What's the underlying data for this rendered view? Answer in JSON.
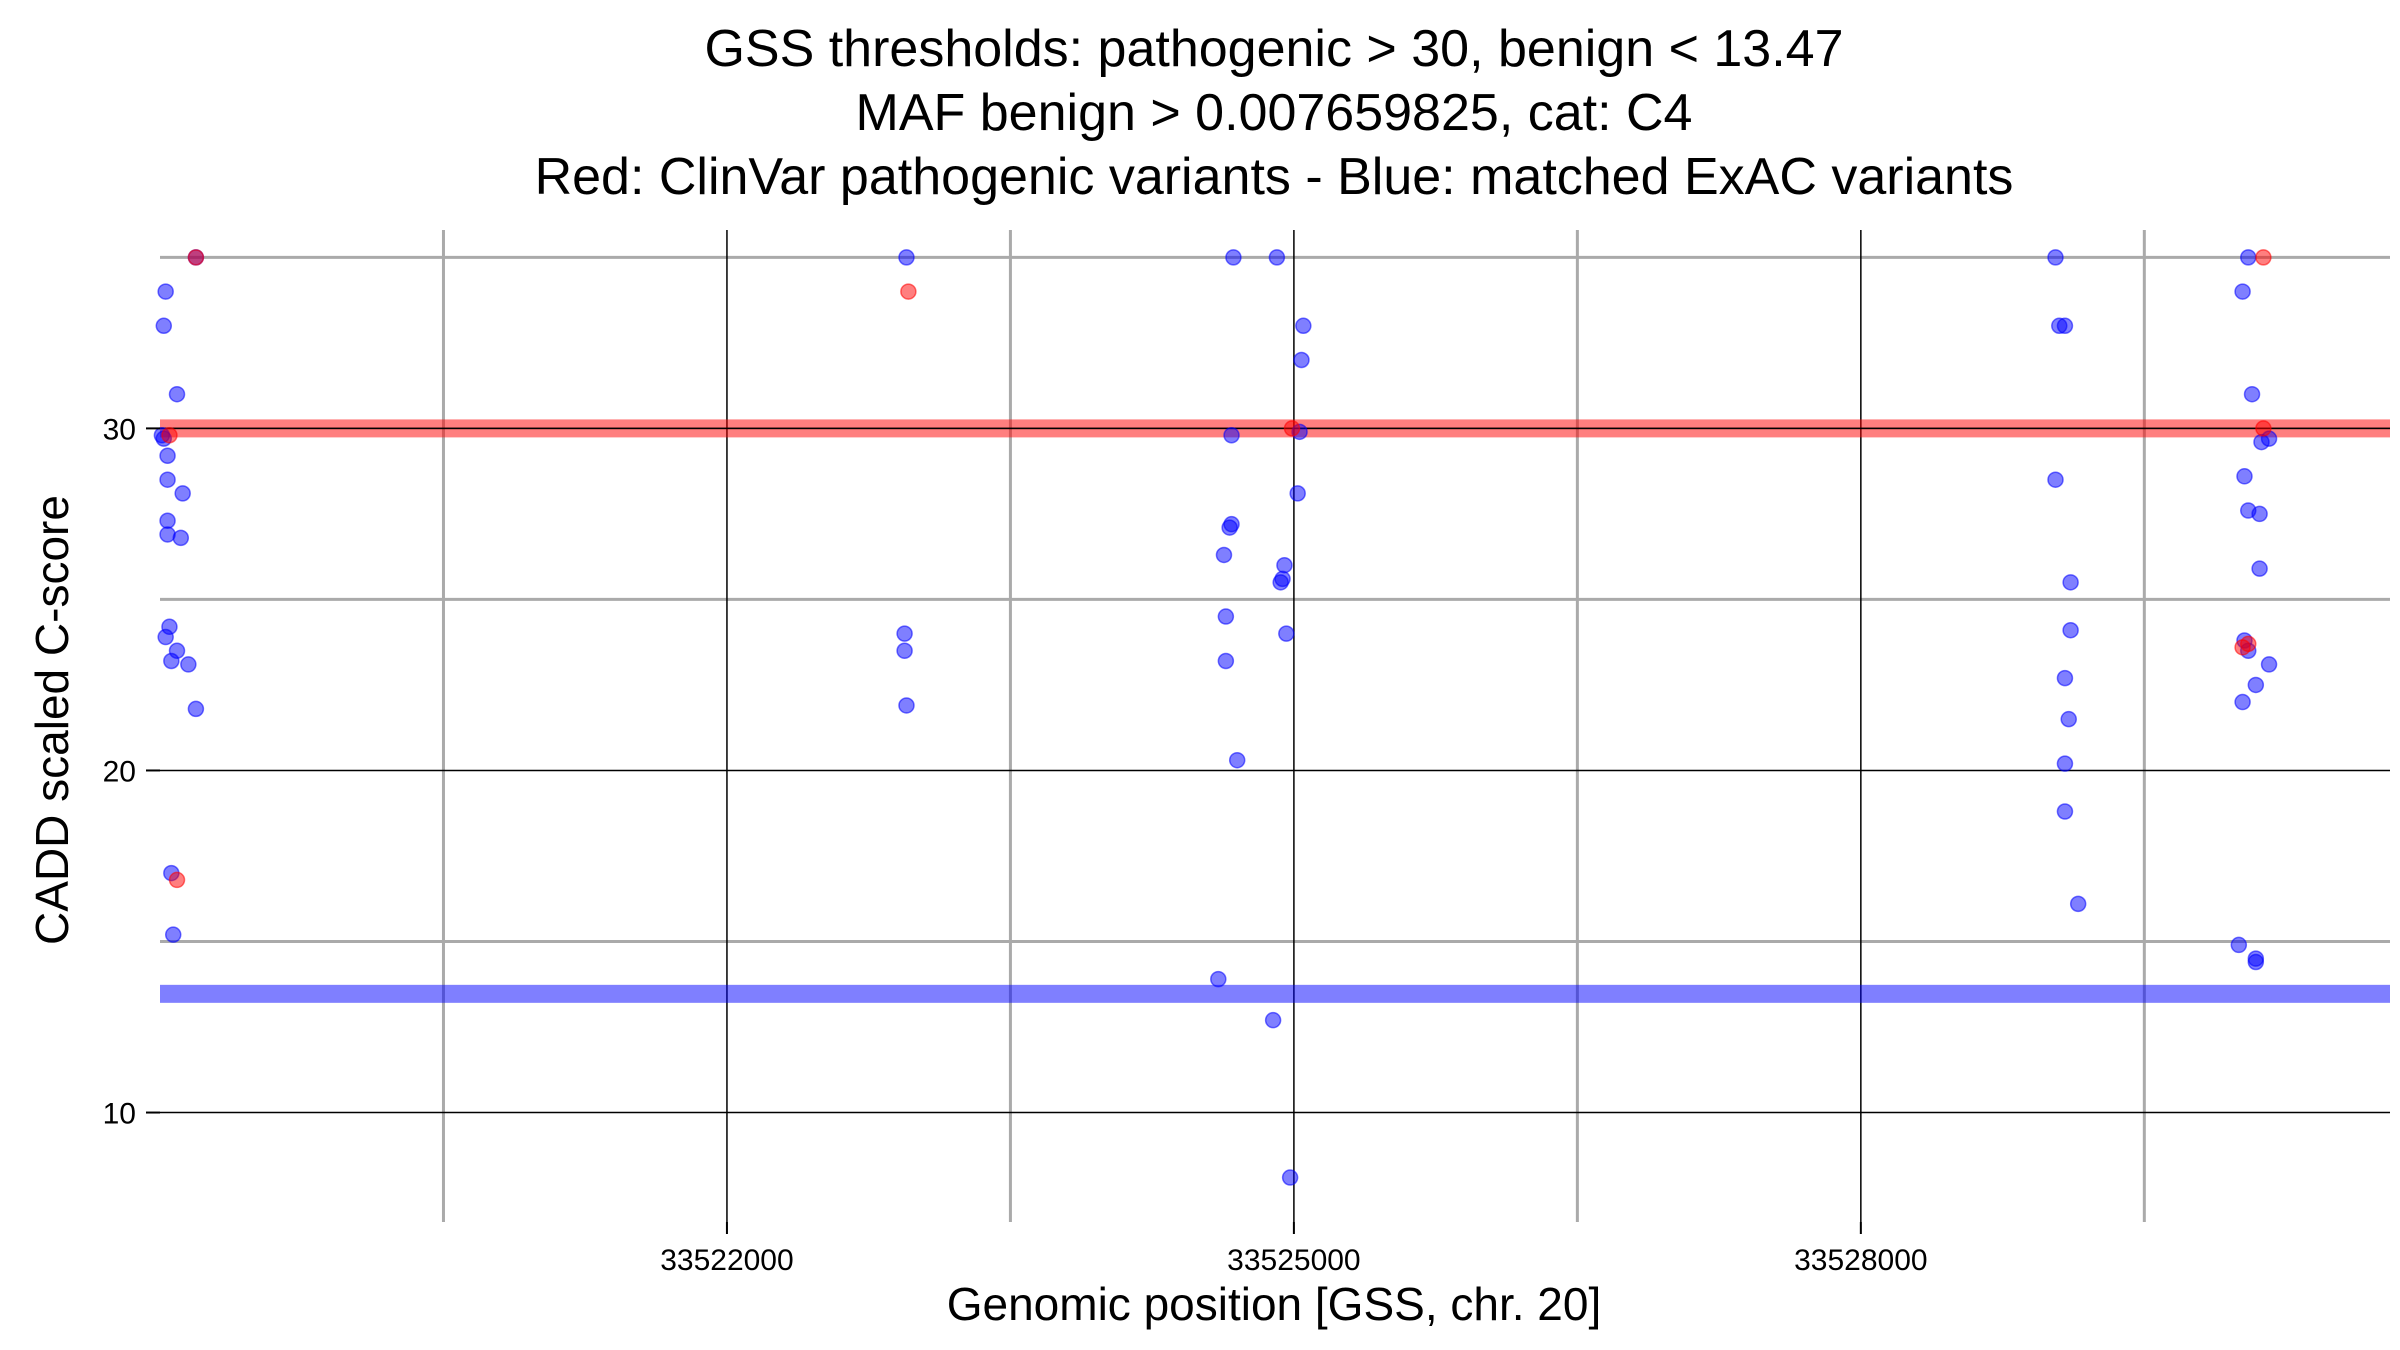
{
  "chart_data": {
    "type": "scatter",
    "title_lines": [
      "GSS thresholds: pathogenic > 30, benign < 13.47",
      "MAF benign > 0.007659825, cat: C4",
      "Red: ClinVar pathogenic variants - Blue: matched ExAC variants"
    ],
    "xlabel": "Genomic position [GSS, chr. 20]",
    "ylabel": "CADD scaled C-score",
    "xlim": [
      33519000,
      33530800
    ],
    "ylim": [
      6.8,
      35.8
    ],
    "x_ticks": [
      33522000,
      33525000,
      33528000
    ],
    "x_tick_labels": [
      "33522000",
      "33525000",
      "33528000"
    ],
    "x_minor_ticks": [
      33520500,
      33523500,
      33526500,
      33529500
    ],
    "y_ticks": [
      10,
      20,
      30
    ],
    "y_tick_labels": [
      "10",
      "20",
      "30"
    ],
    "y_minor_ticks": [
      15,
      25,
      35
    ],
    "grid": true,
    "thresholds": [
      {
        "value": 30,
        "color": "#ff0000"
      },
      {
        "value": 13.47,
        "color": "#0000ff"
      }
    ],
    "colors": {
      "pathogenic": "#ff0000",
      "matched": "#0000ff"
    },
    "series": [
      {
        "key": "pathogenic",
        "color": "#ff0000",
        "points": [
          [
            33519190,
            35.0
          ],
          [
            33519050,
            29.8
          ],
          [
            33519090,
            16.8
          ],
          [
            33522960,
            34.0
          ],
          [
            33524990,
            30.0
          ],
          [
            33530130,
            35.0
          ],
          [
            33530130,
            30.0
          ],
          [
            33530050,
            23.7
          ],
          [
            33530020,
            23.6
          ]
        ]
      },
      {
        "key": "matched",
        "color": "#0000ff",
        "points": [
          [
            33519190,
            35.0
          ],
          [
            33519030,
            34.0
          ],
          [
            33519020,
            33.0
          ],
          [
            33519090,
            31.0
          ],
          [
            33519010,
            29.8
          ],
          [
            33519020,
            29.7
          ],
          [
            33519040,
            29.2
          ],
          [
            33519040,
            28.5
          ],
          [
            33519120,
            28.1
          ],
          [
            33519040,
            27.3
          ],
          [
            33519040,
            26.9
          ],
          [
            33519110,
            26.8
          ],
          [
            33519050,
            24.2
          ],
          [
            33519030,
            23.9
          ],
          [
            33519090,
            23.5
          ],
          [
            33519060,
            23.2
          ],
          [
            33519150,
            23.1
          ],
          [
            33519190,
            21.8
          ],
          [
            33519060,
            17.0
          ],
          [
            33519070,
            15.2
          ],
          [
            33522950,
            35.0
          ],
          [
            33522940,
            24.0
          ],
          [
            33522940,
            23.5
          ],
          [
            33522950,
            21.9
          ],
          [
            33524680,
            35.0
          ],
          [
            33524910,
            35.0
          ],
          [
            33525050,
            33.0
          ],
          [
            33525040,
            32.0
          ],
          [
            33525030,
            29.9
          ],
          [
            33524670,
            29.8
          ],
          [
            33525020,
            28.1
          ],
          [
            33524670,
            27.2
          ],
          [
            33524660,
            27.1
          ],
          [
            33524630,
            26.3
          ],
          [
            33524950,
            26.0
          ],
          [
            33524940,
            25.6
          ],
          [
            33524930,
            25.5
          ],
          [
            33524640,
            24.5
          ],
          [
            33524960,
            24.0
          ],
          [
            33524640,
            23.2
          ],
          [
            33524700,
            20.3
          ],
          [
            33524600,
            13.9
          ],
          [
            33524890,
            12.7
          ],
          [
            33524980,
            8.1
          ],
          [
            33529030,
            35.0
          ],
          [
            33529050,
            33.0
          ],
          [
            33529080,
            33.0
          ],
          [
            33529030,
            28.5
          ],
          [
            33529110,
            25.5
          ],
          [
            33529110,
            24.1
          ],
          [
            33529080,
            22.7
          ],
          [
            33529100,
            21.5
          ],
          [
            33529080,
            20.2
          ],
          [
            33529080,
            18.8
          ],
          [
            33529150,
            16.1
          ],
          [
            33530050,
            35.0
          ],
          [
            33530020,
            34.0
          ],
          [
            33530070,
            31.0
          ],
          [
            33530160,
            29.7
          ],
          [
            33530120,
            29.6
          ],
          [
            33530030,
            28.6
          ],
          [
            33530050,
            27.6
          ],
          [
            33530110,
            27.5
          ],
          [
            33530110,
            25.9
          ],
          [
            33530030,
            23.8
          ],
          [
            33530050,
            23.5
          ],
          [
            33530160,
            23.1
          ],
          [
            33530090,
            22.5
          ],
          [
            33530020,
            22.0
          ],
          [
            33530000,
            14.9
          ],
          [
            33530090,
            14.5
          ],
          [
            33530090,
            14.4
          ]
        ]
      }
    ]
  }
}
